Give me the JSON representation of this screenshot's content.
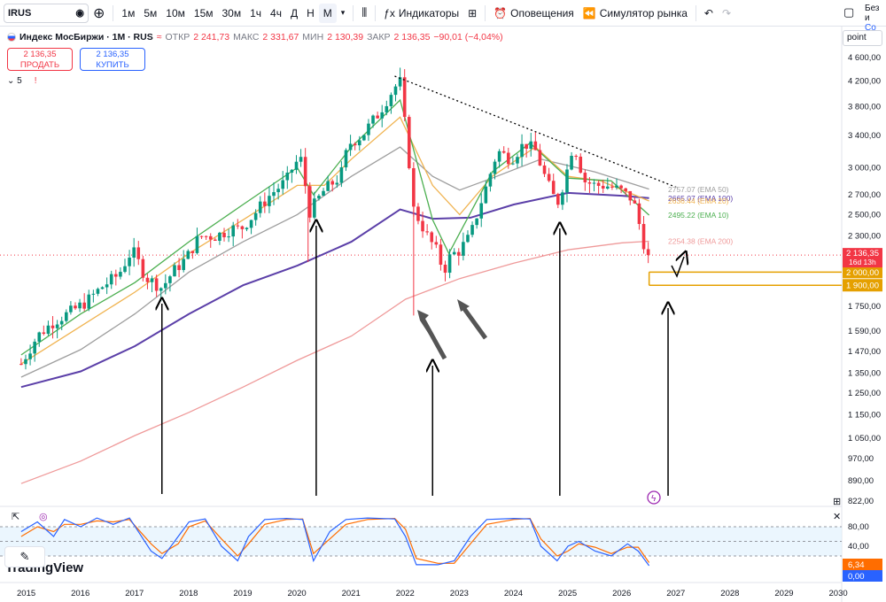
{
  "toolbar": {
    "symbol": "IRUS",
    "timeframes": [
      "1м",
      "5м",
      "10м",
      "15м",
      "30м",
      "1ч",
      "4ч",
      "Д",
      "Н",
      "М"
    ],
    "active_timeframe": "М",
    "indicators_label": "Индикаторы",
    "alerts_label": "Оповещения",
    "simulator_label": "Симулятор рынка",
    "right_cut_label": "Без и",
    "right_cut_sub": "Со"
  },
  "legend": {
    "title": "Индекс МосБиржи · 1M · RUS",
    "open_label": "ОТКР",
    "open": "2 241,73",
    "high_label": "МАКС",
    "high": "2 331,67",
    "low_label": "МИН",
    "low": "2 130,39",
    "close_label": "ЗАКР",
    "close": "2 136,35",
    "change": "−90,01 (−4,04%)"
  },
  "trade": {
    "sell_price": "2 136,35",
    "sell_label": "ПРОДАТЬ",
    "buy_price": "2 136,35",
    "buy_label": "КУПИТЬ"
  },
  "indicators_count": "5",
  "scale_mode": "point",
  "branding": "TradingView",
  "colors": {
    "up": "#089981",
    "down": "#f23645",
    "ema10": "#4caf50",
    "ema20": "#f0b350",
    "ema50": "#9e9e9e",
    "ema100": "#5b3fa8",
    "ema200": "#ef9a9a",
    "trend": "#000000",
    "level": "#e5a000",
    "osc_k": "#2962ff",
    "osc_d": "#ff6d00",
    "osc_band": "#e3f2fd"
  },
  "chart_data": {
    "type": "candlestick",
    "interval": "1M",
    "x_axis": [
      "2015",
      "2016",
      "2017",
      "2018",
      "2019",
      "2020",
      "2021",
      "2022",
      "2023",
      "2024",
      "2025",
      "2026",
      "2027",
      "2028",
      "2029",
      "2030"
    ],
    "y_axis": {
      "scale": "log",
      "ticks": [
        "4 600,00",
        "4 200,00",
        "3 800,00",
        "3 400,00",
        "3 000,00",
        "2 700,00",
        "2 500,00",
        "2 300,00",
        "2 000,00",
        "1 900,00",
        "1 750,00",
        "1 590,00",
        "1 470,00",
        "1 350,00",
        "1 250,00",
        "1 150,00",
        "1 050,00",
        "970,00",
        "890,00",
        "822,00"
      ]
    },
    "axis_labels": [
      "4 600,00",
      "4 200,00",
      "3 800,00",
      "3 400,00",
      "3 000,00",
      "2 700,00",
      "2 500,00",
      "2 300,00",
      "1 750,00",
      "1 590,00",
      "1 470,00",
      "1 350,00",
      "1 250,00",
      "1 150,00",
      "1 050,00",
      "970,00",
      "890,00",
      "822,00"
    ],
    "close_path": [
      [
        2014.9,
        1400
      ],
      [
        2015.2,
        1560
      ],
      [
        2015.5,
        1650
      ],
      [
        2015.8,
        1710
      ],
      [
        2016.1,
        1780
      ],
      [
        2016.4,
        1890
      ],
      [
        2016.7,
        1980
      ],
      [
        2016.95,
        2180
      ],
      [
        2017.2,
        1960
      ],
      [
        2017.5,
        1880
      ],
      [
        2017.7,
        2000
      ],
      [
        2017.95,
        2110
      ],
      [
        2018.2,
        2300
      ],
      [
        2018.5,
        2300
      ],
      [
        2018.8,
        2370
      ],
      [
        2018.95,
        2360
      ],
      [
        2019.2,
        2500
      ],
      [
        2019.5,
        2700
      ],
      [
        2019.8,
        2850
      ],
      [
        2019.95,
        3050
      ],
      [
        2020.1,
        3100
      ],
      [
        2020.2,
        2500
      ],
      [
        2020.5,
        2750
      ],
      [
        2020.8,
        2900
      ],
      [
        2020.95,
        3290
      ],
      [
        2021.2,
        3400
      ],
      [
        2021.5,
        3700
      ],
      [
        2021.8,
        4100
      ],
      [
        2021.9,
        4180
      ],
      [
        2021.95,
        3780
      ],
      [
        2022.1,
        2850
      ],
      [
        2022.15,
        2550
      ],
      [
        2022.4,
        2300
      ],
      [
        2022.6,
        2150
      ],
      [
        2022.7,
        2000
      ],
      [
        2022.85,
        2150
      ],
      [
        2022.95,
        2150
      ],
      [
        2023.2,
        2300
      ],
      [
        2023.5,
        2800
      ],
      [
        2023.7,
        3200
      ],
      [
        2023.95,
        3100
      ],
      [
        2024.2,
        3300
      ],
      [
        2024.4,
        3200
      ],
      [
        2024.6,
        2850
      ],
      [
        2024.8,
        2600
      ],
      [
        2024.95,
        2880
      ],
      [
        2025.1,
        3300
      ],
      [
        2025.3,
        2850
      ],
      [
        2025.5,
        2800
      ],
      [
        2025.7,
        2800
      ],
      [
        2025.95,
        2750
      ],
      [
        2026.2,
        2650
      ],
      [
        2026.4,
        2240
      ],
      [
        2026.5,
        2136.35
      ]
    ],
    "last_price": "2 136,35",
    "countdown": "16d 13h",
    "series": [
      {
        "name": "EMA 50",
        "last": "2757.07",
        "points": [
          [
            2014.9,
            1330
          ],
          [
            2016.0,
            1480
          ],
          [
            2017.0,
            1700
          ],
          [
            2018.0,
            2000
          ],
          [
            2019.0,
            2250
          ],
          [
            2020.0,
            2500
          ],
          [
            2021.0,
            2900
          ],
          [
            2021.9,
            3250
          ],
          [
            2022.5,
            2900
          ],
          [
            2023.0,
            2750
          ],
          [
            2023.6,
            2880
          ],
          [
            2024.5,
            3100
          ],
          [
            2025.5,
            2950
          ],
          [
            2026.5,
            2760
          ]
        ]
      },
      {
        "name": "EMA 100",
        "last": "2665.07",
        "points": [
          [
            2014.9,
            1280
          ],
          [
            2016.0,
            1360
          ],
          [
            2017.0,
            1500
          ],
          [
            2018.0,
            1700
          ],
          [
            2019.0,
            1900
          ],
          [
            2020.0,
            2050
          ],
          [
            2021.0,
            2250
          ],
          [
            2021.9,
            2550
          ],
          [
            2022.5,
            2460
          ],
          [
            2023.2,
            2470
          ],
          [
            2024.0,
            2600
          ],
          [
            2025.0,
            2720
          ],
          [
            2026.0,
            2690
          ],
          [
            2026.5,
            2665
          ]
        ]
      },
      {
        "name": "EMA 20",
        "last": "2636.44",
        "points": [
          [
            2014.9,
            1400
          ],
          [
            2016.0,
            1620
          ],
          [
            2017.0,
            1850
          ],
          [
            2018.0,
            2150
          ],
          [
            2019.0,
            2450
          ],
          [
            2020.0,
            2800
          ],
          [
            2020.5,
            2800
          ],
          [
            2021.0,
            3100
          ],
          [
            2021.9,
            3650
          ],
          [
            2022.5,
            2800
          ],
          [
            2023.0,
            2500
          ],
          [
            2023.6,
            2900
          ],
          [
            2024.4,
            3250
          ],
          [
            2025.0,
            2900
          ],
          [
            2025.6,
            2850
          ],
          [
            2026.5,
            2636
          ]
        ]
      },
      {
        "name": "EMA 10",
        "last": "2495.22",
        "points": [
          [
            2014.9,
            1450
          ],
          [
            2016.0,
            1700
          ],
          [
            2017.0,
            1920
          ],
          [
            2018.0,
            2250
          ],
          [
            2019.0,
            2600
          ],
          [
            2020.0,
            3000
          ],
          [
            2020.3,
            2700
          ],
          [
            2021.0,
            3250
          ],
          [
            2021.9,
            3900
          ],
          [
            2022.5,
            2450
          ],
          [
            2022.8,
            2150
          ],
          [
            2023.6,
            2950
          ],
          [
            2024.3,
            3300
          ],
          [
            2025.0,
            2880
          ],
          [
            2025.8,
            2850
          ],
          [
            2026.5,
            2495
          ]
        ]
      },
      {
        "name": "EMA 200",
        "last": "2254.38",
        "points": [
          [
            2014.9,
            880
          ],
          [
            2016.0,
            960
          ],
          [
            2017.0,
            1060
          ],
          [
            2018.0,
            1160
          ],
          [
            2019.0,
            1280
          ],
          [
            2020.0,
            1420
          ],
          [
            2021.0,
            1560
          ],
          [
            2022.0,
            1800
          ],
          [
            2023.0,
            1950
          ],
          [
            2024.0,
            2070
          ],
          [
            2025.0,
            2180
          ],
          [
            2026.0,
            2240
          ],
          [
            2026.5,
            2254
          ]
        ]
      }
    ],
    "levels": [
      "2 000,00",
      "1 900,00"
    ],
    "oscillator": {
      "ticks": [
        "80,00",
        "40,00"
      ],
      "k_last": "0,00",
      "d_last": "6,34",
      "k": [
        [
          2014.9,
          70
        ],
        [
          2015.2,
          90
        ],
        [
          2015.5,
          60
        ],
        [
          2015.7,
          95
        ],
        [
          2016.0,
          80
        ],
        [
          2016.3,
          98
        ],
        [
          2016.6,
          85
        ],
        [
          2016.9,
          98
        ],
        [
          2017.3,
          30
        ],
        [
          2017.5,
          15
        ],
        [
          2017.8,
          60
        ],
        [
          2018.0,
          90
        ],
        [
          2018.3,
          96
        ],
        [
          2018.6,
          40
        ],
        [
          2018.9,
          10
        ],
        [
          2019.1,
          60
        ],
        [
          2019.4,
          95
        ],
        [
          2019.8,
          97
        ],
        [
          2020.1,
          95
        ],
        [
          2020.3,
          10
        ],
        [
          2020.6,
          70
        ],
        [
          2020.9,
          95
        ],
        [
          2021.3,
          98
        ],
        [
          2021.8,
          96
        ],
        [
          2022.0,
          60
        ],
        [
          2022.2,
          2
        ],
        [
          2022.6,
          2
        ],
        [
          2022.9,
          10
        ],
        [
          2023.2,
          60
        ],
        [
          2023.5,
          95
        ],
        [
          2024.0,
          97
        ],
        [
          2024.3,
          96
        ],
        [
          2024.5,
          40
        ],
        [
          2024.8,
          10
        ],
        [
          2025.0,
          40
        ],
        [
          2025.2,
          50
        ],
        [
          2025.5,
          30
        ],
        [
          2025.8,
          20
        ],
        [
          2026.1,
          45
        ],
        [
          2026.3,
          30
        ],
        [
          2026.5,
          0
        ]
      ],
      "d": [
        [
          2014.9,
          60
        ],
        [
          2015.2,
          80
        ],
        [
          2015.5,
          70
        ],
        [
          2015.7,
          85
        ],
        [
          2016.0,
          85
        ],
        [
          2016.3,
          92
        ],
        [
          2016.6,
          90
        ],
        [
          2016.9,
          95
        ],
        [
          2017.3,
          45
        ],
        [
          2017.5,
          25
        ],
        [
          2017.8,
          45
        ],
        [
          2018.0,
          80
        ],
        [
          2018.3,
          92
        ],
        [
          2018.6,
          55
        ],
        [
          2018.9,
          20
        ],
        [
          2019.1,
          45
        ],
        [
          2019.4,
          85
        ],
        [
          2019.8,
          95
        ],
        [
          2020.1,
          96
        ],
        [
          2020.3,
          25
        ],
        [
          2020.6,
          55
        ],
        [
          2020.9,
          85
        ],
        [
          2021.3,
          95
        ],
        [
          2021.8,
          97
        ],
        [
          2022.0,
          75
        ],
        [
          2022.2,
          15
        ],
        [
          2022.6,
          5
        ],
        [
          2022.9,
          5
        ],
        [
          2023.2,
          45
        ],
        [
          2023.5,
          85
        ],
        [
          2024.0,
          95
        ],
        [
          2024.3,
          97
        ],
        [
          2024.5,
          55
        ],
        [
          2024.8,
          20
        ],
        [
          2025.0,
          30
        ],
        [
          2025.2,
          45
        ],
        [
          2025.5,
          38
        ],
        [
          2025.8,
          25
        ],
        [
          2026.1,
          38
        ],
        [
          2026.3,
          38
        ],
        [
          2026.5,
          6.34
        ]
      ]
    }
  }
}
